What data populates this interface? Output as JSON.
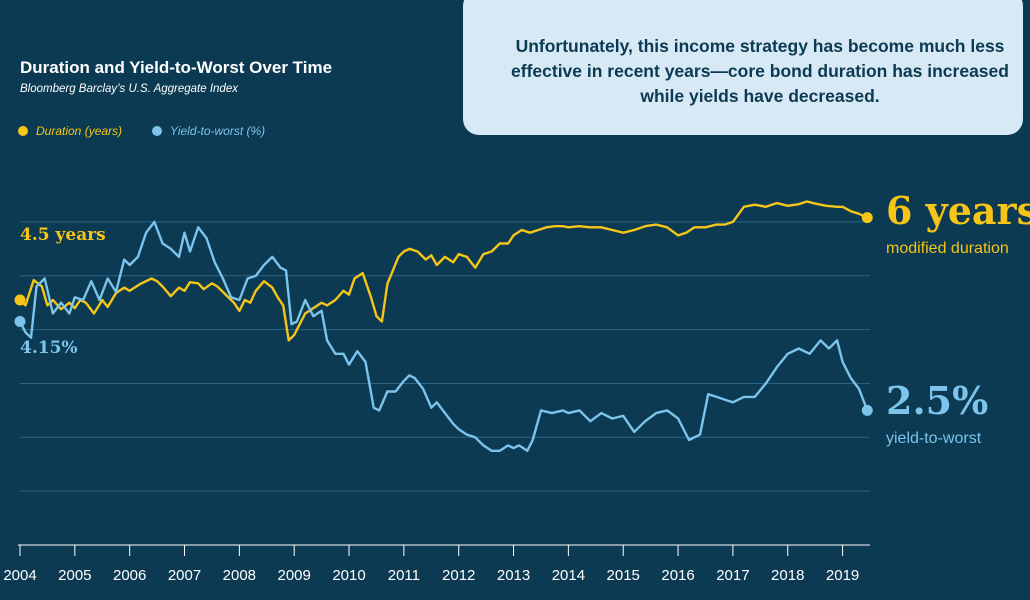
{
  "chart_data": {
    "type": "line",
    "title": "Duration and Yield-to-Worst Over Time",
    "subtitle": "Bloomberg Barclay’s U.S. Aggregate Index",
    "xlabel": "",
    "ylabel": "",
    "xlim": [
      2004,
      2019.5
    ],
    "ylim": [
      0,
      6.5
    ],
    "grid": true,
    "legend_position": "top-left",
    "x_ticks": [
      "2004",
      "2005",
      "2006",
      "2007",
      "2008",
      "2009",
      "2010",
      "2011",
      "2012",
      "2013",
      "2014",
      "2015",
      "2016",
      "2017",
      "2018",
      "2019"
    ],
    "series": [
      {
        "name": "Duration (years)",
        "color": "#f5c518",
        "x": [
          2004.0,
          2004.1,
          2004.25,
          2004.4,
          2004.5,
          2004.6,
          2004.75,
          2004.9,
          2005.0,
          2005.1,
          2005.2,
          2005.35,
          2005.5,
          2005.6,
          2005.75,
          2005.9,
          2006.0,
          2006.2,
          2006.4,
          2006.5,
          2006.6,
          2006.75,
          2006.9,
          2007.0,
          2007.1,
          2007.25,
          2007.35,
          2007.5,
          2007.6,
          2007.75,
          2007.9,
          2008.0,
          2008.1,
          2008.2,
          2008.3,
          2008.45,
          2008.6,
          2008.7,
          2008.8,
          2008.9,
          2009.0,
          2009.1,
          2009.2,
          2009.35,
          2009.5,
          2009.6,
          2009.75,
          2009.9,
          2010.0,
          2010.1,
          2010.25,
          2010.4,
          2010.5,
          2010.6,
          2010.7,
          2010.8,
          2010.9,
          2011.0,
          2011.1,
          2011.25,
          2011.4,
          2011.5,
          2011.6,
          2011.75,
          2011.9,
          2012.0,
          2012.15,
          2012.3,
          2012.45,
          2012.6,
          2012.75,
          2012.9,
          2013.0,
          2013.15,
          2013.3,
          2013.45,
          2013.6,
          2013.75,
          2013.9,
          2014.0,
          2014.2,
          2014.4,
          2014.6,
          2014.8,
          2015.0,
          2015.2,
          2015.4,
          2015.6,
          2015.8,
          2016.0,
          2016.15,
          2016.3,
          2016.5,
          2016.7,
          2016.85,
          2017.0,
          2017.2,
          2017.4,
          2017.6,
          2017.8,
          2018.0,
          2018.2,
          2018.35,
          2018.5,
          2018.7,
          2018.9,
          2019.0,
          2019.15,
          2019.3,
          2019.45
        ],
        "values": [
          4.55,
          4.45,
          4.92,
          4.8,
          4.45,
          4.55,
          4.38,
          4.5,
          4.4,
          4.55,
          4.5,
          4.3,
          4.55,
          4.42,
          4.68,
          4.78,
          4.72,
          4.85,
          4.95,
          4.9,
          4.8,
          4.62,
          4.78,
          4.72,
          4.88,
          4.86,
          4.75,
          4.86,
          4.8,
          4.65,
          4.5,
          4.35,
          4.55,
          4.5,
          4.72,
          4.9,
          4.78,
          4.6,
          4.45,
          3.8,
          3.9,
          4.1,
          4.3,
          4.4,
          4.5,
          4.45,
          4.55,
          4.72,
          4.65,
          4.95,
          5.05,
          4.6,
          4.25,
          4.15,
          4.85,
          5.1,
          5.35,
          5.45,
          5.5,
          5.45,
          5.3,
          5.38,
          5.2,
          5.35,
          5.25,
          5.4,
          5.35,
          5.15,
          5.4,
          5.45,
          5.6,
          5.6,
          5.75,
          5.85,
          5.8,
          5.85,
          5.9,
          5.92,
          5.92,
          5.9,
          5.92,
          5.9,
          5.9,
          5.85,
          5.8,
          5.85,
          5.92,
          5.95,
          5.9,
          5.75,
          5.8,
          5.9,
          5.9,
          5.95,
          5.95,
          6.0,
          6.28,
          6.32,
          6.28,
          6.35,
          6.3,
          6.33,
          6.38,
          6.34,
          6.3,
          6.28,
          6.28,
          6.2,
          6.15,
          6.08
        ]
      },
      {
        "name": "Yield-to-worst (%)",
        "color": "#7cc4ec",
        "x": [
          2004.0,
          2004.1,
          2004.2,
          2004.3,
          2004.45,
          2004.6,
          2004.75,
          2004.9,
          2005.0,
          2005.15,
          2005.3,
          2005.45,
          2005.6,
          2005.75,
          2005.9,
          2006.0,
          2006.15,
          2006.3,
          2006.45,
          2006.6,
          2006.75,
          2006.9,
          2007.0,
          2007.1,
          2007.25,
          2007.4,
          2007.55,
          2007.7,
          2007.85,
          2008.0,
          2008.15,
          2008.3,
          2008.45,
          2008.6,
          2008.75,
          2008.85,
          2008.95,
          2009.05,
          2009.2,
          2009.35,
          2009.5,
          2009.6,
          2009.75,
          2009.9,
          2010.0,
          2010.15,
          2010.3,
          2010.45,
          2010.55,
          2010.7,
          2010.85,
          2011.0,
          2011.1,
          2011.2,
          2011.35,
          2011.5,
          2011.6,
          2011.75,
          2011.9,
          2012.0,
          2012.15,
          2012.3,
          2012.45,
          2012.6,
          2012.75,
          2012.9,
          2013.0,
          2013.1,
          2013.25,
          2013.35,
          2013.5,
          2013.7,
          2013.9,
          2014.0,
          2014.2,
          2014.4,
          2014.6,
          2014.8,
          2015.0,
          2015.2,
          2015.4,
          2015.6,
          2015.8,
          2016.0,
          2016.2,
          2016.4,
          2016.55,
          2016.7,
          2016.85,
          2017.0,
          2017.2,
          2017.4,
          2017.6,
          2017.8,
          2018.0,
          2018.2,
          2018.4,
          2018.6,
          2018.75,
          2018.9,
          2019.0,
          2019.15,
          2019.3,
          2019.45
        ],
        "values": [
          4.15,
          3.95,
          3.85,
          4.8,
          4.95,
          4.3,
          4.5,
          4.3,
          4.6,
          4.55,
          4.9,
          4.55,
          4.95,
          4.7,
          5.3,
          5.2,
          5.35,
          5.8,
          6.0,
          5.6,
          5.5,
          5.35,
          5.8,
          5.45,
          5.9,
          5.7,
          5.25,
          4.95,
          4.6,
          4.55,
          4.95,
          5.0,
          5.2,
          5.35,
          5.15,
          5.1,
          4.1,
          4.15,
          4.55,
          4.25,
          4.35,
          3.8,
          3.55,
          3.55,
          3.35,
          3.6,
          3.4,
          2.55,
          2.5,
          2.85,
          2.85,
          3.05,
          3.15,
          3.1,
          2.9,
          2.55,
          2.65,
          2.45,
          2.25,
          2.15,
          2.05,
          2.0,
          1.85,
          1.75,
          1.75,
          1.85,
          1.8,
          1.85,
          1.75,
          1.95,
          2.5,
          2.45,
          2.5,
          2.45,
          2.5,
          2.3,
          2.45,
          2.35,
          2.4,
          2.1,
          2.3,
          2.45,
          2.5,
          2.35,
          1.95,
          2.05,
          2.8,
          2.75,
          2.7,
          2.65,
          2.75,
          2.75,
          3.0,
          3.3,
          3.55,
          3.65,
          3.55,
          3.8,
          3.65,
          3.8,
          3.4,
          3.1,
          2.9,
          2.5
        ]
      }
    ],
    "annotations": {
      "duration_start": "4.5 years",
      "yield_start": "4.15%",
      "duration_end_value": "6 years",
      "duration_end_label": "modified duration",
      "yield_end_value": "2.5%",
      "yield_end_label": "yield-to-worst"
    }
  },
  "callout": {
    "text": "Unfortunately, this income strategy has become much less effective in recent years—core bond duration has increased while yields have decreased."
  },
  "legend": {
    "duration": "Duration (years)",
    "yield": "Yield-to-worst (%)"
  },
  "colors": {
    "background": "#0b3a52",
    "duration": "#f5c518",
    "yield": "#7cc4ec",
    "gridline": "#2d6485",
    "callout_bg": "#d6e9f5"
  }
}
